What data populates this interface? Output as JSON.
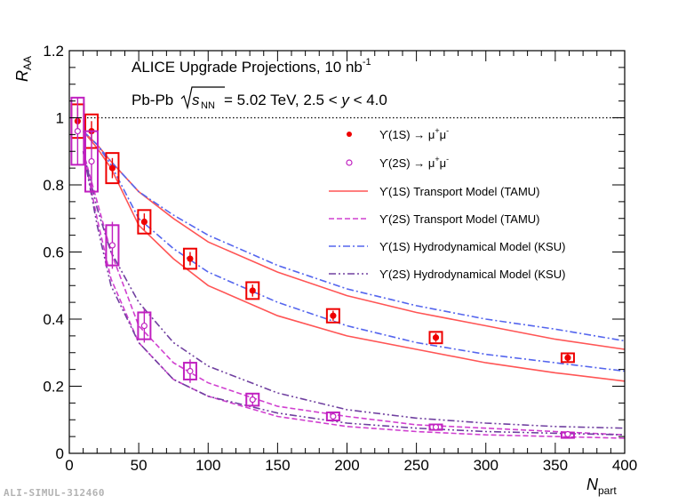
{
  "chart_data": {
    "type": "scatter",
    "title_line1": "ALICE Upgrade Projections, 10 nb",
    "title_line1_sup": "-1",
    "title_line2_prefix": "Pb-Pb ",
    "title_line2_s": "s",
    "title_line2_s_sub": "NN",
    "title_line2_suffix": " = 5.02 TeV, 2.5 < ",
    "title_line2_y": "y",
    "title_line2_end": " < 4.0",
    "xlabel": "N",
    "xlabel_sub": "part",
    "ylabel": "R",
    "ylabel_sub": "AA",
    "xlim": [
      0,
      400
    ],
    "ylim": [
      0,
      1.2
    ],
    "x_ticks": [
      0,
      50,
      100,
      150,
      200,
      250,
      300,
      350,
      400
    ],
    "x_tick_labels": [
      "0",
      "50",
      "100",
      "150",
      "200",
      "250",
      "300",
      "350",
      "400"
    ],
    "y_ticks": [
      0,
      0.2,
      0.4,
      0.6,
      0.8,
      1,
      1.2
    ],
    "y_tick_labels": [
      "0",
      "0.2",
      "0.4",
      "0.6",
      "0.8",
      "1",
      "1.2"
    ],
    "reference_line": 1,
    "series": [
      {
        "name": "ϒ(1S) → μ⁺μ⁻",
        "legend_main": "ϒ(1S) → μ",
        "legend_sup1": "+",
        "legend_mid": "μ",
        "legend_sup2": "-",
        "marker": "filled-circle",
        "color": "#ee0000",
        "x": [
          6,
          16,
          31,
          54,
          87,
          132,
          190,
          264,
          359
        ],
        "y": [
          0.99,
          0.96,
          0.85,
          0.69,
          0.58,
          0.485,
          0.41,
          0.345,
          0.285
        ],
        "stat_err": [
          0.04,
          0.03,
          0.03,
          0.025,
          0.02,
          0.018,
          0.015,
          0.013,
          0.012
        ],
        "sys_err": [
          0.05,
          0.05,
          0.045,
          0.035,
          0.03,
          0.025,
          0.02,
          0.017,
          0.013
        ]
      },
      {
        "name": "ϒ(2S) → μ⁺μ⁻",
        "legend_main": "ϒ(2S) → μ",
        "legend_sup1": "+",
        "legend_mid": "μ",
        "legend_sup2": "-",
        "marker": "open-circle",
        "color": "#c020c0",
        "x": [
          6,
          16,
          31,
          54,
          87,
          132,
          190,
          264,
          359
        ],
        "y": [
          0.96,
          0.87,
          0.62,
          0.38,
          0.245,
          0.16,
          0.11,
          0.078,
          0.057
        ],
        "stat_err": [
          0.1,
          0.09,
          0.07,
          0.05,
          0.035,
          0.02,
          0.012,
          0.008,
          0.005
        ],
        "sys_err": [
          0.1,
          0.09,
          0.06,
          0.04,
          0.025,
          0.018,
          0.012,
          0.008,
          0.005
        ]
      }
    ],
    "models": [
      {
        "name": "ϒ(1S) Transport Model (TAMU)",
        "color": "#ff5555",
        "style": "solid",
        "band": true,
        "x": [
          10,
          20,
          30,
          50,
          75,
          100,
          150,
          200,
          250,
          300,
          350,
          400
        ],
        "y_upper": [
          0.96,
          0.92,
          0.87,
          0.78,
          0.7,
          0.63,
          0.54,
          0.47,
          0.42,
          0.38,
          0.34,
          0.31
        ],
        "y_lower": [
          0.96,
          0.91,
          0.85,
          0.68,
          0.58,
          0.5,
          0.41,
          0.35,
          0.31,
          0.27,
          0.24,
          0.215
        ]
      },
      {
        "name": "ϒ(2S) Transport Model (TAMU)",
        "color": "#d040d0",
        "style": "dashed",
        "band": true,
        "x": [
          10,
          20,
          30,
          50,
          75,
          100,
          150,
          200,
          250,
          300,
          350,
          400
        ],
        "y_upper": [
          0.9,
          0.75,
          0.6,
          0.38,
          0.27,
          0.21,
          0.14,
          0.11,
          0.085,
          0.075,
          0.065,
          0.055
        ],
        "y_lower": [
          0.9,
          0.7,
          0.52,
          0.33,
          0.22,
          0.17,
          0.11,
          0.08,
          0.065,
          0.055,
          0.05,
          0.045
        ]
      },
      {
        "name": "ϒ(1S) Hydrodynamical Model (KSU)",
        "color": "#5566ee",
        "style": "dashdot",
        "band": true,
        "x": [
          10,
          20,
          30,
          50,
          75,
          100,
          150,
          200,
          250,
          300,
          350,
          400
        ],
        "y_upper": [
          0.96,
          0.92,
          0.87,
          0.78,
          0.71,
          0.65,
          0.56,
          0.49,
          0.44,
          0.4,
          0.37,
          0.335
        ],
        "y_lower": [
          0.96,
          0.92,
          0.86,
          0.7,
          0.61,
          0.54,
          0.45,
          0.38,
          0.33,
          0.295,
          0.27,
          0.245
        ]
      },
      {
        "name": "ϒ(2S) Hydrodynamical Model (KSU)",
        "color": "#7040a0",
        "style": "dashdotdot",
        "band": true,
        "x": [
          10,
          20,
          30,
          50,
          75,
          100,
          150,
          200,
          250,
          300,
          350,
          400
        ],
        "y_upper": [
          0.9,
          0.73,
          0.6,
          0.45,
          0.33,
          0.26,
          0.18,
          0.13,
          0.105,
          0.09,
          0.08,
          0.075
        ],
        "y_lower": [
          0.9,
          0.68,
          0.5,
          0.33,
          0.22,
          0.17,
          0.12,
          0.09,
          0.075,
          0.065,
          0.06,
          0.055
        ]
      }
    ]
  },
  "watermark": "ALI-SIMUL-312460"
}
